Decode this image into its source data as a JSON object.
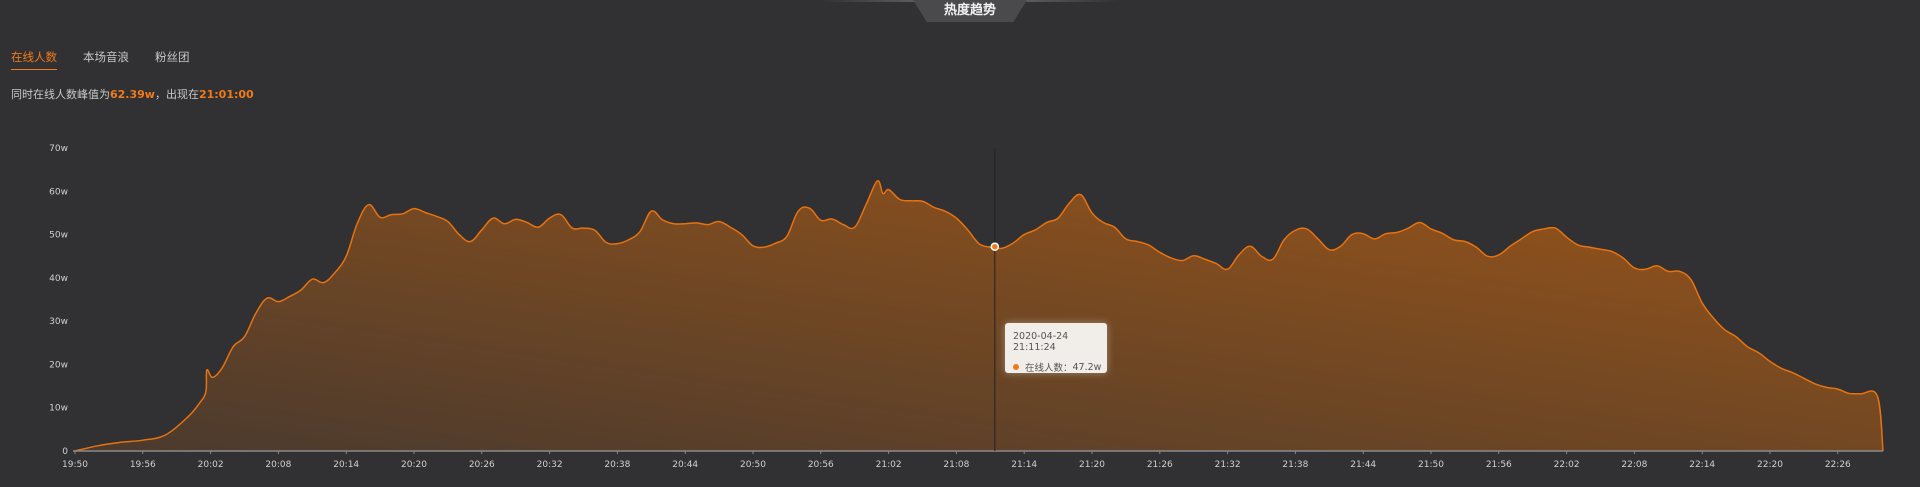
{
  "header": {
    "title": "热度趋势"
  },
  "tabs": [
    {
      "label": "在线人数",
      "active": true
    },
    {
      "label": "本场音浪",
      "active": false
    },
    {
      "label": "粉丝团",
      "active": false
    }
  ],
  "summary": {
    "prefix": "同时在线人数峰值为",
    "peak": "62.39w",
    "middle": "，出现在",
    "peak_time": "21:01:00"
  },
  "tooltip": {
    "datetime": "2020-04-24 21:11:24",
    "series_label": "在线人数：",
    "value": "47.2w",
    "time": "21:11:24",
    "numeric_value": 47.2
  },
  "colors": {
    "background": "#313133",
    "line": "#e8720f",
    "fill_top": "#9a5518",
    "fill_bottom": "#4a3a2e",
    "accent": "#f07a1a"
  },
  "chart_data": {
    "type": "area",
    "xlabel": "",
    "ylabel": "",
    "unit": "w",
    "ylim": [
      0,
      70
    ],
    "y_ticks": [
      "0",
      "10w",
      "20w",
      "30w",
      "40w",
      "50w",
      "60w",
      "70w"
    ],
    "x_ticks": [
      "19:50",
      "19:56",
      "20:02",
      "20:08",
      "20:14",
      "20:20",
      "20:26",
      "20:32",
      "20:38",
      "20:44",
      "20:50",
      "20:56",
      "21:02",
      "21:08",
      "21:14",
      "21:20",
      "21:26",
      "21:32",
      "21:38",
      "21:44",
      "21:50",
      "21:56",
      "22:02",
      "22:08",
      "22:14",
      "22:20",
      "22:26"
    ],
    "xlim": [
      "19:50:00",
      "22:30:00"
    ],
    "grid": false,
    "x": [
      "19:50:00",
      "19:52:00",
      "19:54:00",
      "19:56:00",
      "19:58:00",
      "20:00:00",
      "20:01:00",
      "20:01:35",
      "20:01:40",
      "20:02:10",
      "20:03:00",
      "20:04:00",
      "20:05:00",
      "20:06:00",
      "20:07:00",
      "20:08:00",
      "20:09:00",
      "20:10:00",
      "20:11:00",
      "20:12:00",
      "20:13:00",
      "20:14:00",
      "20:15:00",
      "20:16:00",
      "20:17:00",
      "20:18:00",
      "20:19:00",
      "20:20:00",
      "20:21:00",
      "20:22:00",
      "20:23:00",
      "20:24:00",
      "20:25:00",
      "20:26:00",
      "20:27:00",
      "20:28:00",
      "20:29:00",
      "20:30:00",
      "20:31:00",
      "20:32:00",
      "20:33:00",
      "20:34:00",
      "20:35:00",
      "20:36:00",
      "20:37:00",
      "20:38:00",
      "20:39:00",
      "20:40:00",
      "20:41:00",
      "20:42:00",
      "20:43:00",
      "20:44:00",
      "20:45:00",
      "20:46:00",
      "20:47:00",
      "20:48:00",
      "20:49:00",
      "20:50:00",
      "20:51:00",
      "20:52:00",
      "20:53:00",
      "20:54:00",
      "20:55:00",
      "20:56:00",
      "20:57:00",
      "20:58:00",
      "20:59:00",
      "21:00:00",
      "21:01:00",
      "21:01:30",
      "21:02:00",
      "21:03:00",
      "21:04:00",
      "21:05:00",
      "21:06:00",
      "21:07:00",
      "21:08:00",
      "21:09:00",
      "21:10:00",
      "21:11:00",
      "21:11:24",
      "21:12:00",
      "21:13:00",
      "21:14:00",
      "21:15:00",
      "21:16:00",
      "21:17:00",
      "21:18:00",
      "21:19:00",
      "21:20:00",
      "21:21:00",
      "21:22:00",
      "21:23:00",
      "21:24:00",
      "21:25:00",
      "21:26:00",
      "21:27:00",
      "21:28:00",
      "21:29:00",
      "21:30:00",
      "21:31:00",
      "21:32:00",
      "21:33:00",
      "21:34:00",
      "21:35:00",
      "21:36:00",
      "21:37:00",
      "21:38:00",
      "21:39:00",
      "21:40:00",
      "21:41:00",
      "21:42:00",
      "21:43:00",
      "21:44:00",
      "21:45:00",
      "21:46:00",
      "21:47:00",
      "21:48:00",
      "21:49:00",
      "21:50:00",
      "21:51:00",
      "21:52:00",
      "21:53:00",
      "21:54:00",
      "21:55:00",
      "21:56:00",
      "21:57:00",
      "21:58:00",
      "21:59:00",
      "22:00:00",
      "22:01:00",
      "22:02:00",
      "22:03:00",
      "22:04:00",
      "22:05:00",
      "22:06:00",
      "22:07:00",
      "22:08:00",
      "22:09:00",
      "22:10:00",
      "22:11:00",
      "22:12:00",
      "22:13:00",
      "22:14:00",
      "22:15:00",
      "22:16:00",
      "22:17:00",
      "22:18:00",
      "22:19:00",
      "22:20:00",
      "22:21:00",
      "22:22:00",
      "22:23:00",
      "22:24:00",
      "22:25:00",
      "22:26:00",
      "22:27:00",
      "22:28:00",
      "22:29:30",
      "22:30:00"
    ],
    "values": [
      0,
      1.2,
      2.0,
      2.5,
      3.7,
      7.9,
      11,
      13.7,
      18.7,
      17,
      19.1,
      24.1,
      26.4,
      31.8,
      35.3,
      34.5,
      35.7,
      37.2,
      39.7,
      38.9,
      41.2,
      45,
      52.7,
      56.9,
      54,
      54.6,
      54.8,
      56,
      55.1,
      54.2,
      53,
      50,
      48.4,
      51.1,
      53.8,
      52.5,
      53.5,
      52.8,
      51.7,
      53.8,
      54.6,
      51.5,
      51.5,
      51,
      48.2,
      47.9,
      48.8,
      50.7,
      55.4,
      53.4,
      52.5,
      52.5,
      52.7,
      52.3,
      53,
      51.7,
      50,
      47.4,
      47.1,
      48,
      49.6,
      55.4,
      56.1,
      53.3,
      53.6,
      52.3,
      51.7,
      56.9,
      62.39,
      59.5,
      60.4,
      58.1,
      57.8,
      57.7,
      56.3,
      55.4,
      53.8,
      51.1,
      47.9,
      47.1,
      47.2,
      46.8,
      48,
      50,
      51.1,
      52.8,
      53.8,
      57.3,
      59.2,
      55,
      52.8,
      51.7,
      49,
      48.4,
      47.6,
      45.9,
      44.6,
      44,
      45.1,
      44.3,
      43.3,
      42,
      45.3,
      47.3,
      45,
      44.3,
      48.8,
      51,
      51.3,
      49,
      46.5,
      47.3,
      50,
      50.2,
      49,
      50.2,
      50.5,
      51.5,
      52.8,
      51.3,
      50.3,
      48.8,
      48.4,
      47.1,
      45,
      45.3,
      47.3,
      49,
      50.7,
      51.3,
      51.5,
      49.4,
      47.6,
      47.1,
      46.6,
      46.1,
      44.6,
      42.3,
      42,
      42.8,
      41.5,
      41.5,
      39.6,
      34.2,
      30.7,
      28,
      26.4,
      24.1,
      22.7,
      20.7,
      19.1,
      18.1,
      16.8,
      15.5,
      14.7,
      14.3,
      13.3,
      13.2,
      12.7,
      0
    ]
  }
}
